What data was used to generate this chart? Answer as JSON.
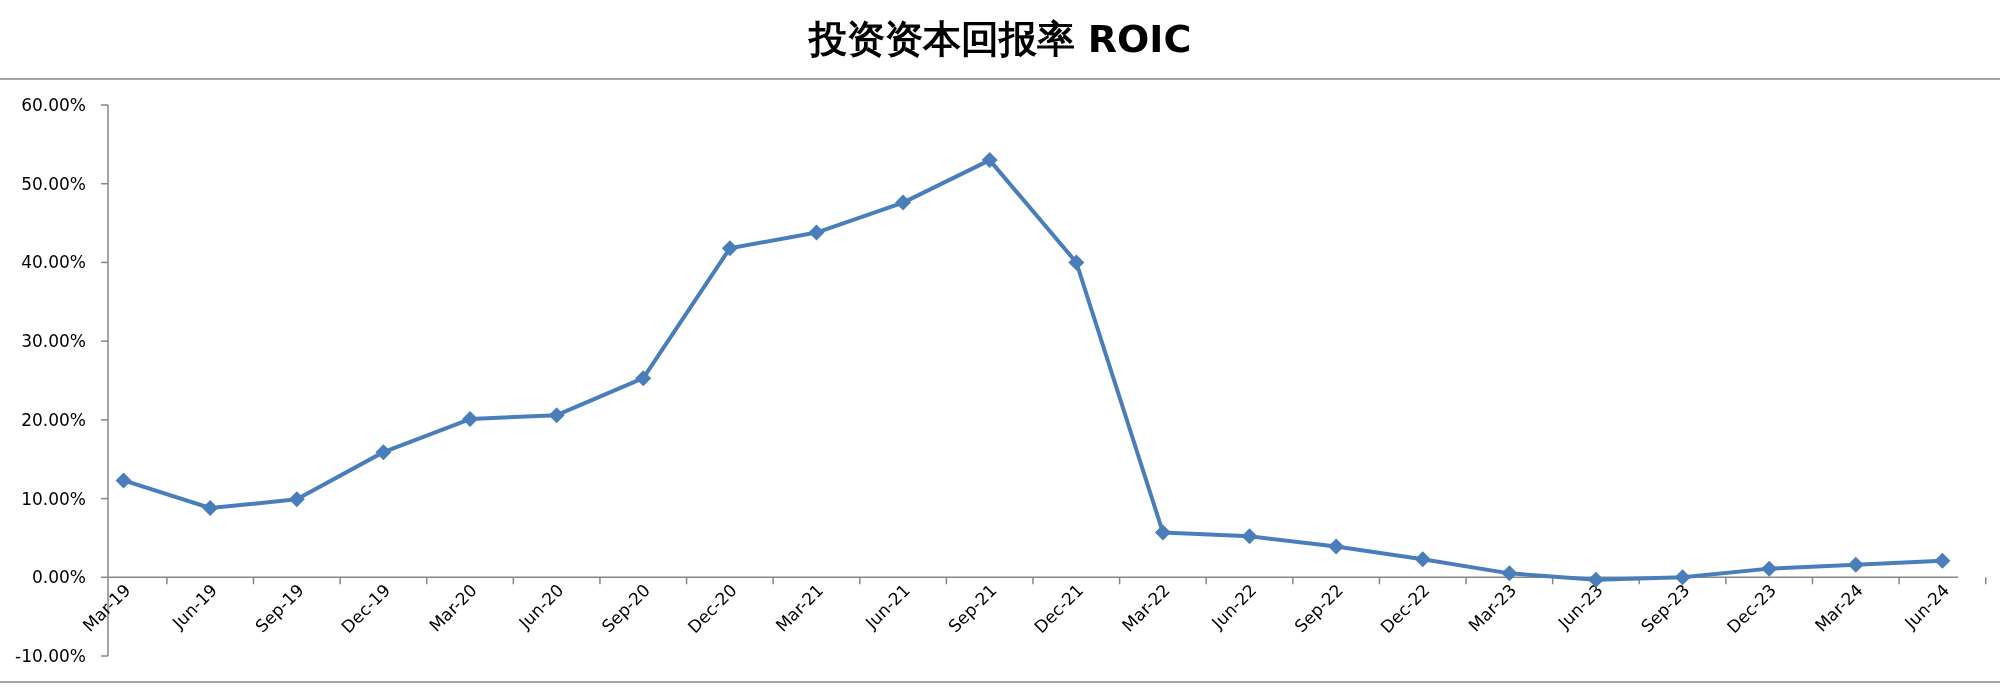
{
  "chart_data": {
    "type": "line",
    "title": "投资资本回报率 ROIC",
    "categories": [
      "Mar-19",
      "Jun-19",
      "Sep-19",
      "Dec-19",
      "Mar-20",
      "Jun-20",
      "Sep-20",
      "Dec-20",
      "Mar-21",
      "Jun-21",
      "Sep-21",
      "Dec-21",
      "Mar-22",
      "Jun-22",
      "Sep-22",
      "Dec-22",
      "Mar-23",
      "Jun-23",
      "Sep-23",
      "Dec-23",
      "Mar-24",
      "Jun-24"
    ],
    "values": [
      12.3,
      8.8,
      9.9,
      15.9,
      20.1,
      20.6,
      25.3,
      41.8,
      43.8,
      47.6,
      53.0,
      40.0,
      5.7,
      5.2,
      3.9,
      2.3,
      0.5,
      -0.3,
      0.0,
      1.1,
      1.6,
      2.1
    ],
    "color": "#4a7ebb",
    "marker": "diamond",
    "line_style": "solid",
    "ylim": [
      -10,
      60
    ],
    "yticks": [
      {
        "value": -10,
        "label": "-10.00%"
      },
      {
        "value": 0,
        "label": "0.00%"
      },
      {
        "value": 10,
        "label": "10.00%"
      },
      {
        "value": 20,
        "label": "20.00%"
      },
      {
        "value": 30,
        "label": "30.00%"
      },
      {
        "value": 40,
        "label": "40.00%"
      },
      {
        "value": 50,
        "label": "50.00%"
      },
      {
        "value": 60,
        "label": "60.00%"
      }
    ]
  }
}
